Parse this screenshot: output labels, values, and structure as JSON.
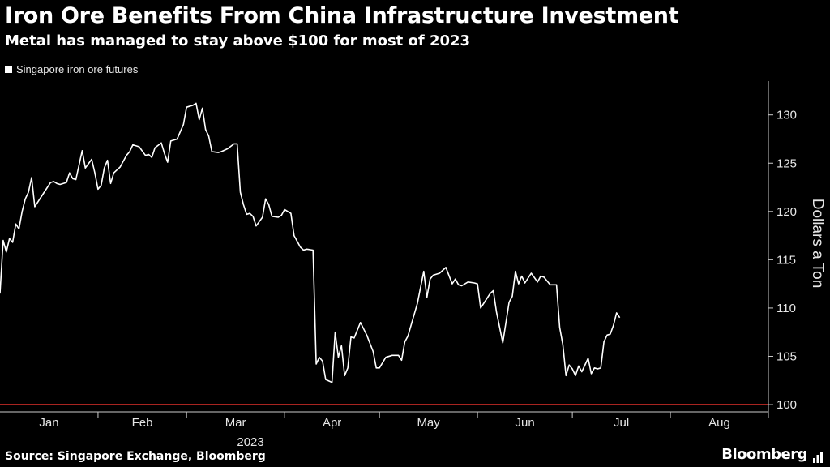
{
  "header": {
    "title": "Iron Ore Benefits From China Infrastructure Investment",
    "subtitle": "Metal has managed to stay above $100 for most of 2023"
  },
  "footer": {
    "source": "Source: Singapore Exchange, Bloomberg",
    "brand": "Bloomberg"
  },
  "colors": {
    "background": "#000000",
    "line": "#ffffff",
    "reference_line": "#e0312b",
    "axis": "#cccccc"
  },
  "chart_data": {
    "type": "line",
    "title": "Iron Ore Benefits From China Infrastructure Investment",
    "subtitle": "Metal has managed to stay above $100 for most of 2023",
    "ylabel": "Dollars a Ton",
    "xlabel": "2023",
    "ylim": [
      99.5,
      133.5
    ],
    "y_ticks": [
      100,
      105,
      110,
      115,
      120,
      125,
      130
    ],
    "y_axis_position": "right",
    "legend_position": "top-left",
    "grid": false,
    "reference_line": {
      "y": 100,
      "color": "#e0312b"
    },
    "x_range": [
      "2023-01-01",
      "2023-08-31"
    ],
    "months": [
      {
        "label": "Jan",
        "start": "2023-01-01"
      },
      {
        "label": "Feb",
        "start": "2023-02-01"
      },
      {
        "label": "Mar",
        "start": "2023-03-01"
      },
      {
        "label": "Apr",
        "start": "2023-04-01"
      },
      {
        "label": "May",
        "start": "2023-05-01"
      },
      {
        "label": "Jun",
        "start": "2023-06-01"
      },
      {
        "label": "Jul",
        "start": "2023-07-01"
      },
      {
        "label": "Aug",
        "start": "2023-08-01"
      }
    ],
    "series": [
      {
        "name": "Singapore iron ore futures",
        "color": "#ffffff",
        "points": [
          [
            "2023-01-01",
            111.5
          ],
          [
            "2023-01-02",
            117.0
          ],
          [
            "2023-01-03",
            115.8
          ],
          [
            "2023-01-04",
            117.2
          ],
          [
            "2023-01-05",
            116.8
          ],
          [
            "2023-01-06",
            118.7
          ],
          [
            "2023-01-07",
            118.2
          ],
          [
            "2023-01-08",
            120.0
          ],
          [
            "2023-01-09",
            121.3
          ],
          [
            "2023-01-10",
            122.0
          ],
          [
            "2023-01-11",
            123.5
          ],
          [
            "2023-01-12",
            120.5
          ],
          [
            "2023-01-13",
            121.0
          ],
          [
            "2023-01-15",
            122.0
          ],
          [
            "2023-01-17",
            123.0
          ],
          [
            "2023-01-18",
            123.1
          ],
          [
            "2023-01-19",
            122.9
          ],
          [
            "2023-01-20",
            122.8
          ],
          [
            "2023-01-22",
            123.0
          ],
          [
            "2023-01-23",
            124.0
          ],
          [
            "2023-01-24",
            123.4
          ],
          [
            "2023-01-25",
            123.3
          ],
          [
            "2023-01-27",
            126.3
          ],
          [
            "2023-01-28",
            124.5
          ],
          [
            "2023-01-30",
            125.4
          ],
          [
            "2023-01-31",
            124.0
          ],
          [
            "2023-02-01",
            122.3
          ],
          [
            "2023-02-02",
            122.7
          ],
          [
            "2023-02-03",
            124.5
          ],
          [
            "2023-02-04",
            125.3
          ],
          [
            "2023-02-05",
            122.9
          ],
          [
            "2023-02-06",
            124.0
          ],
          [
            "2023-02-08",
            124.6
          ],
          [
            "2023-02-09",
            125.2
          ],
          [
            "2023-02-10",
            125.8
          ],
          [
            "2023-02-11",
            126.2
          ],
          [
            "2023-02-12",
            126.9
          ],
          [
            "2023-02-14",
            126.7
          ],
          [
            "2023-02-16",
            125.8
          ],
          [
            "2023-02-17",
            125.9
          ],
          [
            "2023-02-18",
            125.6
          ],
          [
            "2023-02-19",
            126.6
          ],
          [
            "2023-02-21",
            127.1
          ],
          [
            "2023-02-22",
            126.0
          ],
          [
            "2023-02-23",
            125.1
          ],
          [
            "2023-02-24",
            127.3
          ],
          [
            "2023-02-26",
            127.5
          ],
          [
            "2023-02-28",
            129.0
          ],
          [
            "2023-03-01",
            130.8
          ],
          [
            "2023-03-03",
            131.0
          ],
          [
            "2023-03-04",
            131.2
          ],
          [
            "2023-03-05",
            129.5
          ],
          [
            "2023-03-06",
            130.7
          ],
          [
            "2023-03-07",
            128.5
          ],
          [
            "2023-03-08",
            127.8
          ],
          [
            "2023-03-09",
            126.2
          ],
          [
            "2023-03-11",
            126.1
          ],
          [
            "2023-03-12",
            126.2
          ],
          [
            "2023-03-14",
            126.5
          ],
          [
            "2023-03-16",
            127.0
          ],
          [
            "2023-03-17",
            127.0
          ],
          [
            "2023-03-18",
            122.0
          ],
          [
            "2023-03-19",
            120.7
          ],
          [
            "2023-03-20",
            119.7
          ],
          [
            "2023-03-21",
            119.8
          ],
          [
            "2023-03-22",
            119.5
          ],
          [
            "2023-03-23",
            118.5
          ],
          [
            "2023-03-25",
            119.4
          ],
          [
            "2023-03-26",
            121.3
          ],
          [
            "2023-03-27",
            120.7
          ],
          [
            "2023-03-28",
            119.5
          ],
          [
            "2023-03-30",
            119.4
          ],
          [
            "2023-03-31",
            119.6
          ],
          [
            "2023-04-01",
            120.2
          ],
          [
            "2023-04-03",
            119.8
          ],
          [
            "2023-04-04",
            117.5
          ],
          [
            "2023-04-06",
            116.3
          ],
          [
            "2023-04-07",
            116.0
          ],
          [
            "2023-04-08",
            116.1
          ],
          [
            "2023-04-10",
            116.0
          ],
          [
            "2023-04-11",
            104.2
          ],
          [
            "2023-04-12",
            104.9
          ],
          [
            "2023-04-13",
            104.5
          ],
          [
            "2023-04-14",
            102.6
          ],
          [
            "2023-04-16",
            102.3
          ],
          [
            "2023-04-17",
            107.5
          ],
          [
            "2023-04-18",
            104.9
          ],
          [
            "2023-04-19",
            106.1
          ],
          [
            "2023-04-20",
            103.0
          ],
          [
            "2023-04-21",
            103.8
          ],
          [
            "2023-04-22",
            107.0
          ],
          [
            "2023-04-23",
            106.9
          ],
          [
            "2023-04-25",
            108.5
          ],
          [
            "2023-04-27",
            107.2
          ],
          [
            "2023-04-29",
            105.5
          ],
          [
            "2023-04-30",
            103.8
          ],
          [
            "2023-05-01",
            103.8
          ],
          [
            "2023-05-03",
            104.9
          ],
          [
            "2023-05-05",
            105.1
          ],
          [
            "2023-05-07",
            105.1
          ],
          [
            "2023-05-08",
            104.6
          ],
          [
            "2023-05-09",
            106.5
          ],
          [
            "2023-05-10",
            107.1
          ],
          [
            "2023-05-13",
            110.5
          ],
          [
            "2023-05-15",
            113.8
          ],
          [
            "2023-05-16",
            111.1
          ],
          [
            "2023-05-17",
            113.0
          ],
          [
            "2023-05-18",
            113.4
          ],
          [
            "2023-05-20",
            113.6
          ],
          [
            "2023-05-22",
            114.2
          ],
          [
            "2023-05-24",
            112.5
          ],
          [
            "2023-05-25",
            113.0
          ],
          [
            "2023-05-26",
            112.4
          ],
          [
            "2023-05-27",
            112.3
          ],
          [
            "2023-05-29",
            112.7
          ],
          [
            "2023-05-31",
            112.6
          ],
          [
            "2023-06-01",
            112.5
          ],
          [
            "2023-06-02",
            110.0
          ],
          [
            "2023-06-03",
            110.5
          ],
          [
            "2023-06-05",
            111.5
          ],
          [
            "2023-06-06",
            111.8
          ],
          [
            "2023-06-07",
            109.6
          ],
          [
            "2023-06-09",
            106.4
          ],
          [
            "2023-06-11",
            110.6
          ],
          [
            "2023-06-12",
            111.2
          ],
          [
            "2023-06-13",
            113.8
          ],
          [
            "2023-06-14",
            112.5
          ],
          [
            "2023-06-15",
            113.3
          ],
          [
            "2023-06-16",
            112.6
          ],
          [
            "2023-06-18",
            113.6
          ],
          [
            "2023-06-20",
            112.7
          ],
          [
            "2023-06-21",
            113.3
          ],
          [
            "2023-06-22",
            113.2
          ],
          [
            "2023-06-24",
            112.4
          ],
          [
            "2023-06-26",
            112.4
          ],
          [
            "2023-06-27",
            108.0
          ],
          [
            "2023-06-28",
            106.2
          ],
          [
            "2023-06-29",
            103.0
          ],
          [
            "2023-06-30",
            104.1
          ],
          [
            "2023-07-01",
            103.7
          ],
          [
            "2023-07-02",
            103.0
          ],
          [
            "2023-07-03",
            104.0
          ],
          [
            "2023-07-04",
            103.4
          ],
          [
            "2023-07-06",
            104.8
          ],
          [
            "2023-07-07",
            103.2
          ],
          [
            "2023-07-08",
            103.8
          ],
          [
            "2023-07-09",
            103.7
          ],
          [
            "2023-07-10",
            103.8
          ],
          [
            "2023-07-11",
            106.5
          ],
          [
            "2023-07-12",
            107.2
          ],
          [
            "2023-07-13",
            107.3
          ],
          [
            "2023-07-14",
            108.2
          ],
          [
            "2023-07-15",
            109.5
          ],
          [
            "2023-07-16",
            109.0
          ]
        ]
      }
    ]
  }
}
